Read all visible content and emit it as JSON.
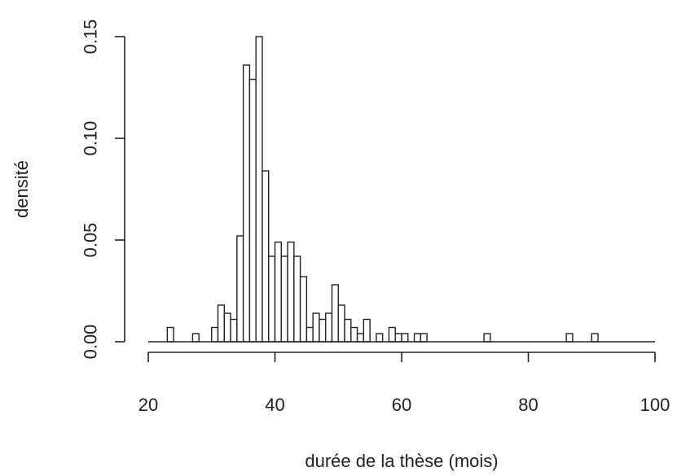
{
  "chart_data": {
    "type": "bar",
    "subtype": "histogram",
    "xlabel": "durée de la thèse (mois)",
    "ylabel": "densité",
    "xlim": [
      20,
      100
    ],
    "ylim": [
      0,
      0.15
    ],
    "x_ticks": [
      20,
      40,
      60,
      80,
      100
    ],
    "x_tick_labels": [
      "20",
      "40",
      "60",
      "80",
      "100"
    ],
    "y_ticks": [
      0,
      0.05,
      0.1,
      0.15
    ],
    "y_tick_labels": [
      "0.00",
      "0.05",
      "0.10",
      "0.15"
    ],
    "bin_width": 1,
    "bins": [
      {
        "start": 23,
        "end": 24,
        "density": 0.007
      },
      {
        "start": 27,
        "end": 28,
        "density": 0.004
      },
      {
        "start": 30,
        "end": 31,
        "density": 0.007
      },
      {
        "start": 31,
        "end": 32,
        "density": 0.018
      },
      {
        "start": 32,
        "end": 33,
        "density": 0.014
      },
      {
        "start": 33,
        "end": 34,
        "density": 0.011
      },
      {
        "start": 34,
        "end": 35,
        "density": 0.052
      },
      {
        "start": 35,
        "end": 36,
        "density": 0.136
      },
      {
        "start": 36,
        "end": 37,
        "density": 0.129
      },
      {
        "start": 37,
        "end": 38,
        "density": 0.15
      },
      {
        "start": 38,
        "end": 39,
        "density": 0.084
      },
      {
        "start": 39,
        "end": 40,
        "density": 0.042
      },
      {
        "start": 40,
        "end": 41,
        "density": 0.049
      },
      {
        "start": 41,
        "end": 42,
        "density": 0.042
      },
      {
        "start": 42,
        "end": 43,
        "density": 0.049
      },
      {
        "start": 43,
        "end": 44,
        "density": 0.042
      },
      {
        "start": 44,
        "end": 45,
        "density": 0.032
      },
      {
        "start": 45,
        "end": 46,
        "density": 0.007
      },
      {
        "start": 46,
        "end": 47,
        "density": 0.014
      },
      {
        "start": 47,
        "end": 48,
        "density": 0.011
      },
      {
        "start": 48,
        "end": 49,
        "density": 0.014
      },
      {
        "start": 49,
        "end": 50,
        "density": 0.028
      },
      {
        "start": 50,
        "end": 51,
        "density": 0.018
      },
      {
        "start": 51,
        "end": 52,
        "density": 0.011
      },
      {
        "start": 52,
        "end": 53,
        "density": 0.007
      },
      {
        "start": 53,
        "end": 54,
        "density": 0.004
      },
      {
        "start": 54,
        "end": 55,
        "density": 0.011
      },
      {
        "start": 56,
        "end": 57,
        "density": 0.004
      },
      {
        "start": 58,
        "end": 59,
        "density": 0.007
      },
      {
        "start": 59,
        "end": 60,
        "density": 0.004
      },
      {
        "start": 60,
        "end": 61,
        "density": 0.004
      },
      {
        "start": 62,
        "end": 63,
        "density": 0.004
      },
      {
        "start": 63,
        "end": 64,
        "density": 0.004
      },
      {
        "start": 73,
        "end": 74,
        "density": 0.004
      },
      {
        "start": 86,
        "end": 87,
        "density": 0.004
      },
      {
        "start": 90,
        "end": 91,
        "density": 0.004
      }
    ],
    "baseline": true,
    "grid": false,
    "legend": "none"
  }
}
